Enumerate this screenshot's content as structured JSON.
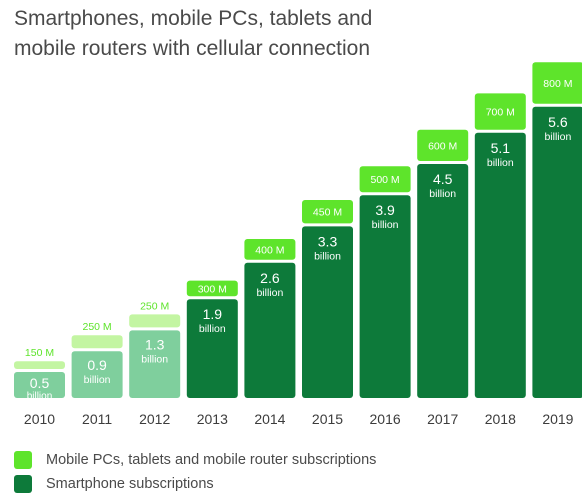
{
  "chart_data": {
    "type": "bar",
    "stacked": true,
    "title": "Smartphones, mobile PCs, tablets and mobile routers with cellular connection",
    "title_lines": [
      "Smartphones, mobile PCs, tablets and",
      "mobile routers with cellular connection"
    ],
    "categories": [
      "2010",
      "2011",
      "2012",
      "2013",
      "2014",
      "2015",
      "2016",
      "2017",
      "2018",
      "2019"
    ],
    "unit_label": "billion",
    "series": [
      {
        "name": "Smartphone subscriptions",
        "values": [
          0.5,
          0.9,
          1.3,
          1.9,
          2.6,
          3.3,
          3.9,
          4.5,
          5.1,
          5.6
        ],
        "labels": [
          "0.5",
          "0.9",
          "1.3",
          "1.9",
          "2.6",
          "3.3",
          "3.9",
          "4.5",
          "5.1",
          "5.6"
        ]
      },
      {
        "name": "Mobile PCs, tablets and mobile router subscriptions",
        "values": [
          0.15,
          0.25,
          0.25,
          0.3,
          0.4,
          0.45,
          0.5,
          0.6,
          0.7,
          0.8
        ],
        "labels": [
          "150 M",
          "250 M",
          "250 M",
          "300 M",
          "400 M",
          "450 M",
          "500 M",
          "600 M",
          "700 M",
          "800 M"
        ]
      }
    ],
    "colors": {
      "smartphone": "#0d7a3a",
      "smartphone_early": "#7fcf9d",
      "mobile_pc": "#5ee42b",
      "mobile_pc_early": "#c3f5a2",
      "label_light": "#ffffff"
    },
    "ylim": [
      0,
      7
    ],
    "grid": false,
    "legend": "bottom-left"
  },
  "legend": {
    "items": [
      {
        "label": "Mobile PCs, tablets and mobile router subscriptions",
        "color": "#5ee42b"
      },
      {
        "label": "Smartphone subscriptions",
        "color": "#0d7a3a"
      }
    ]
  }
}
